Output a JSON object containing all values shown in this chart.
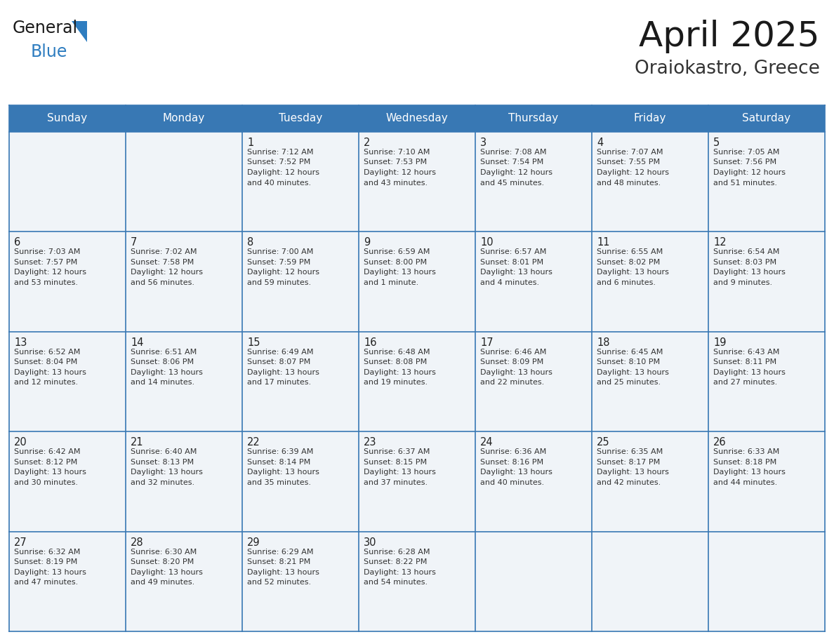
{
  "title": "April 2025",
  "subtitle": "Oraiokastro, Greece",
  "header_bg_color": "#3878b4",
  "header_text_color": "#ffffff",
  "cell_bg_color": "#f0f4f8",
  "grid_line_color": "#3878b4",
  "title_color": "#1a1a1a",
  "subtitle_color": "#333333",
  "day_number_color": "#222222",
  "cell_text_color": "#333333",
  "logo_general_color": "#1a1a1a",
  "logo_blue_color": "#2e7dc0",
  "day_names": [
    "Sunday",
    "Monday",
    "Tuesday",
    "Wednesday",
    "Thursday",
    "Friday",
    "Saturday"
  ],
  "weeks": [
    [
      {
        "day": "",
        "lines": []
      },
      {
        "day": "",
        "lines": []
      },
      {
        "day": "1",
        "lines": [
          "Sunrise: 7:12 AM",
          "Sunset: 7:52 PM",
          "Daylight: 12 hours",
          "and 40 minutes."
        ]
      },
      {
        "day": "2",
        "lines": [
          "Sunrise: 7:10 AM",
          "Sunset: 7:53 PM",
          "Daylight: 12 hours",
          "and 43 minutes."
        ]
      },
      {
        "day": "3",
        "lines": [
          "Sunrise: 7:08 AM",
          "Sunset: 7:54 PM",
          "Daylight: 12 hours",
          "and 45 minutes."
        ]
      },
      {
        "day": "4",
        "lines": [
          "Sunrise: 7:07 AM",
          "Sunset: 7:55 PM",
          "Daylight: 12 hours",
          "and 48 minutes."
        ]
      },
      {
        "day": "5",
        "lines": [
          "Sunrise: 7:05 AM",
          "Sunset: 7:56 PM",
          "Daylight: 12 hours",
          "and 51 minutes."
        ]
      }
    ],
    [
      {
        "day": "6",
        "lines": [
          "Sunrise: 7:03 AM",
          "Sunset: 7:57 PM",
          "Daylight: 12 hours",
          "and 53 minutes."
        ]
      },
      {
        "day": "7",
        "lines": [
          "Sunrise: 7:02 AM",
          "Sunset: 7:58 PM",
          "Daylight: 12 hours",
          "and 56 minutes."
        ]
      },
      {
        "day": "8",
        "lines": [
          "Sunrise: 7:00 AM",
          "Sunset: 7:59 PM",
          "Daylight: 12 hours",
          "and 59 minutes."
        ]
      },
      {
        "day": "9",
        "lines": [
          "Sunrise: 6:59 AM",
          "Sunset: 8:00 PM",
          "Daylight: 13 hours",
          "and 1 minute."
        ]
      },
      {
        "day": "10",
        "lines": [
          "Sunrise: 6:57 AM",
          "Sunset: 8:01 PM",
          "Daylight: 13 hours",
          "and 4 minutes."
        ]
      },
      {
        "day": "11",
        "lines": [
          "Sunrise: 6:55 AM",
          "Sunset: 8:02 PM",
          "Daylight: 13 hours",
          "and 6 minutes."
        ]
      },
      {
        "day": "12",
        "lines": [
          "Sunrise: 6:54 AM",
          "Sunset: 8:03 PM",
          "Daylight: 13 hours",
          "and 9 minutes."
        ]
      }
    ],
    [
      {
        "day": "13",
        "lines": [
          "Sunrise: 6:52 AM",
          "Sunset: 8:04 PM",
          "Daylight: 13 hours",
          "and 12 minutes."
        ]
      },
      {
        "day": "14",
        "lines": [
          "Sunrise: 6:51 AM",
          "Sunset: 8:06 PM",
          "Daylight: 13 hours",
          "and 14 minutes."
        ]
      },
      {
        "day": "15",
        "lines": [
          "Sunrise: 6:49 AM",
          "Sunset: 8:07 PM",
          "Daylight: 13 hours",
          "and 17 minutes."
        ]
      },
      {
        "day": "16",
        "lines": [
          "Sunrise: 6:48 AM",
          "Sunset: 8:08 PM",
          "Daylight: 13 hours",
          "and 19 minutes."
        ]
      },
      {
        "day": "17",
        "lines": [
          "Sunrise: 6:46 AM",
          "Sunset: 8:09 PM",
          "Daylight: 13 hours",
          "and 22 minutes."
        ]
      },
      {
        "day": "18",
        "lines": [
          "Sunrise: 6:45 AM",
          "Sunset: 8:10 PM",
          "Daylight: 13 hours",
          "and 25 minutes."
        ]
      },
      {
        "day": "19",
        "lines": [
          "Sunrise: 6:43 AM",
          "Sunset: 8:11 PM",
          "Daylight: 13 hours",
          "and 27 minutes."
        ]
      }
    ],
    [
      {
        "day": "20",
        "lines": [
          "Sunrise: 6:42 AM",
          "Sunset: 8:12 PM",
          "Daylight: 13 hours",
          "and 30 minutes."
        ]
      },
      {
        "day": "21",
        "lines": [
          "Sunrise: 6:40 AM",
          "Sunset: 8:13 PM",
          "Daylight: 13 hours",
          "and 32 minutes."
        ]
      },
      {
        "day": "22",
        "lines": [
          "Sunrise: 6:39 AM",
          "Sunset: 8:14 PM",
          "Daylight: 13 hours",
          "and 35 minutes."
        ]
      },
      {
        "day": "23",
        "lines": [
          "Sunrise: 6:37 AM",
          "Sunset: 8:15 PM",
          "Daylight: 13 hours",
          "and 37 minutes."
        ]
      },
      {
        "day": "24",
        "lines": [
          "Sunrise: 6:36 AM",
          "Sunset: 8:16 PM",
          "Daylight: 13 hours",
          "and 40 minutes."
        ]
      },
      {
        "day": "25",
        "lines": [
          "Sunrise: 6:35 AM",
          "Sunset: 8:17 PM",
          "Daylight: 13 hours",
          "and 42 minutes."
        ]
      },
      {
        "day": "26",
        "lines": [
          "Sunrise: 6:33 AM",
          "Sunset: 8:18 PM",
          "Daylight: 13 hours",
          "and 44 minutes."
        ]
      }
    ],
    [
      {
        "day": "27",
        "lines": [
          "Sunrise: 6:32 AM",
          "Sunset: 8:19 PM",
          "Daylight: 13 hours",
          "and 47 minutes."
        ]
      },
      {
        "day": "28",
        "lines": [
          "Sunrise: 6:30 AM",
          "Sunset: 8:20 PM",
          "Daylight: 13 hours",
          "and 49 minutes."
        ]
      },
      {
        "day": "29",
        "lines": [
          "Sunrise: 6:29 AM",
          "Sunset: 8:21 PM",
          "Daylight: 13 hours",
          "and 52 minutes."
        ]
      },
      {
        "day": "30",
        "lines": [
          "Sunrise: 6:28 AM",
          "Sunset: 8:22 PM",
          "Daylight: 13 hours",
          "and 54 minutes."
        ]
      },
      {
        "day": "",
        "lines": []
      },
      {
        "day": "",
        "lines": []
      },
      {
        "day": "",
        "lines": []
      }
    ]
  ]
}
